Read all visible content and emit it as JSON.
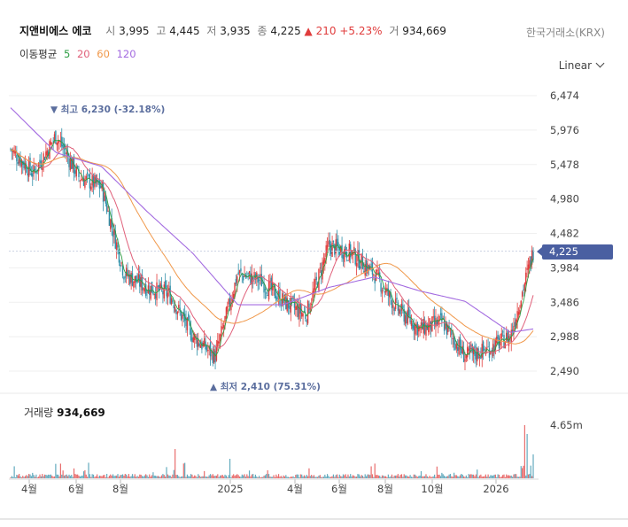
{
  "header": {
    "name": "지앤비에스 에코",
    "open_label": "시",
    "open": "3,995",
    "high_label": "고",
    "high": "4,445",
    "low_label": "저",
    "low": "3,935",
    "close_label": "종",
    "close": "4,225",
    "change_arrow": "▲",
    "change": "210",
    "change_pct": "+5.23%",
    "volume_label": "거",
    "volume": "934,669"
  },
  "exchange": "한국거래소(KRX)",
  "ma_legend": {
    "label": "이동평균",
    "ma5": "5",
    "ma20": "20",
    "ma60": "60",
    "ma120": "120"
  },
  "scale_toggle": "Linear",
  "price_tag": "4,225",
  "volume_panel": {
    "label": "거래량",
    "value": "934,669",
    "axis_max": "4.65m"
  },
  "annotations": {
    "high": "▼ 최고 6,230 (-32.18%)",
    "low": "▲ 최저 2,410 (75.31%)"
  },
  "colors": {
    "up": "#e03c3c",
    "down": "#2f8fa8",
    "ma5": "#2e9e44",
    "ma20": "#e0607a",
    "ma60": "#f0984a",
    "ma120": "#a36be0",
    "tag": "#4a5fa1"
  },
  "chart_data": {
    "type": "candlestick",
    "y_ticks": [
      "6,474",
      "5,976",
      "5,478",
      "4,980",
      "4,482",
      "3,984",
      "3,486",
      "2,988",
      "2,490"
    ],
    "x_ticks": [
      "4월",
      "6월",
      "8월",
      "2025",
      "4월",
      "6월",
      "8월",
      "10월",
      "2026"
    ],
    "ylim": [
      2490,
      6474
    ],
    "close_path": [
      {
        "t": "2024-03",
        "y": 5700
      },
      {
        "t": "2024-04",
        "y": 5350
      },
      {
        "t": "2024-05",
        "y": 5900
      },
      {
        "t": "2024-06",
        "y": 5300
      },
      {
        "t": "2024-07",
        "y": 5150
      },
      {
        "t": "2024-08",
        "y": 3900
      },
      {
        "t": "2024-09",
        "y": 3700
      },
      {
        "t": "2024-10",
        "y": 3600
      },
      {
        "t": "2024-11",
        "y": 3000
      },
      {
        "t": "2024-12",
        "y": 2700
      },
      {
        "t": "2025-01",
        "y": 3900
      },
      {
        "t": "2025-02",
        "y": 3800
      },
      {
        "t": "2025-03",
        "y": 3500
      },
      {
        "t": "2025-04",
        "y": 3300
      },
      {
        "t": "2025-05",
        "y": 4300
      },
      {
        "t": "2025-06",
        "y": 4200
      },
      {
        "t": "2025-07",
        "y": 3900
      },
      {
        "t": "2025-08",
        "y": 3400
      },
      {
        "t": "2025-09",
        "y": 3100
      },
      {
        "t": "2025-10",
        "y": 3200
      },
      {
        "t": "2025-11",
        "y": 2700
      },
      {
        "t": "2025-12",
        "y": 2800
      },
      {
        "t": "2026-01",
        "y": 3000
      },
      {
        "t": "2026-02",
        "y": 4225
      }
    ],
    "ma120_path": [
      {
        "t": "2024-03",
        "y": 6300
      },
      {
        "t": "2024-05",
        "y": 5650
      },
      {
        "t": "2024-07",
        "y": 5450
      },
      {
        "t": "2024-09",
        "y": 4800
      },
      {
        "t": "2024-11",
        "y": 4200
      },
      {
        "t": "2025-01",
        "y": 3450
      },
      {
        "t": "2025-03",
        "y": 3450
      },
      {
        "t": "2025-05",
        "y": 3700
      },
      {
        "t": "2025-07",
        "y": 3850
      },
      {
        "t": "2025-09",
        "y": 3650
      },
      {
        "t": "2025-11",
        "y": 3500
      },
      {
        "t": "2026-01",
        "y": 3050
      },
      {
        "t": "2026-02",
        "y": 3100
      }
    ],
    "high_point": {
      "t": "2024-05",
      "y": 6230
    },
    "low_point": {
      "t": "2024-12",
      "y": 2410
    },
    "last_close": 4225
  }
}
